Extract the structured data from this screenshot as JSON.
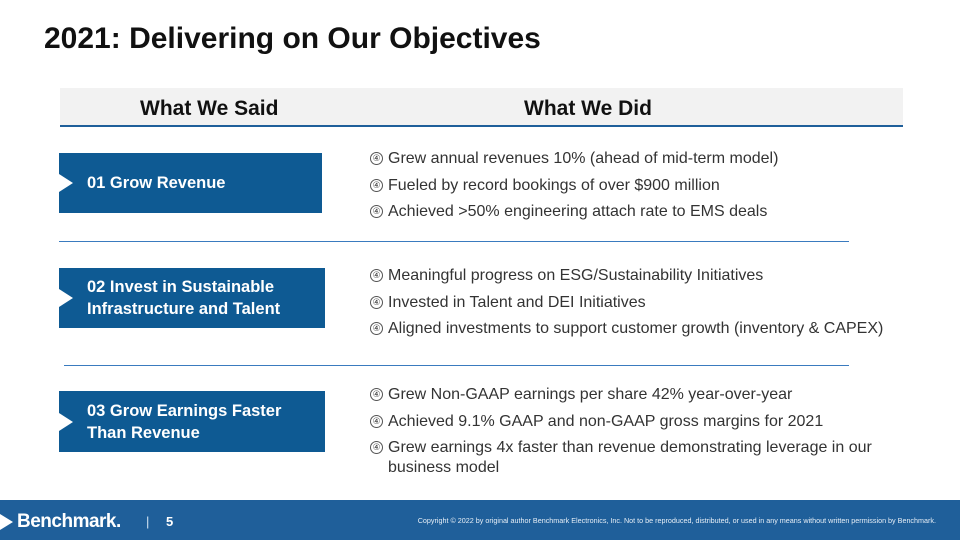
{
  "slide": {
    "title": "2021: Delivering on Our Objectives"
  },
  "table_header": {
    "said_label": "What We Said",
    "did_label": "What We Did"
  },
  "objectives": [
    {
      "label": "01 Grow Revenue",
      "bullets": [
        "Grew annual revenues 10% (ahead of mid-term model)",
        "Fueled by record bookings of over $900 million",
        "Achieved >50% engineering attach rate to EMS deals"
      ]
    },
    {
      "label": "02 Invest in Sustainable Infrastructure and Talent",
      "bullets": [
        "Meaningful progress on ESG/Sustainability Initiatives",
        "Invested in Talent and DEI Initiatives",
        "Aligned investments to support customer growth (inventory & CAPEX)"
      ]
    },
    {
      "label": "03 Grow Earnings Faster Than Revenue",
      "bullets": [
        "Grew Non-GAAP earnings per share 42% year-over-year",
        "Achieved 9.1% GAAP and non-GAAP gross margins for 2021",
        "Grew earnings 4x faster than revenue demonstrating leverage in our business model"
      ]
    }
  ],
  "bullet_glyph": "④",
  "footer": {
    "logo_text": "Benchmark.",
    "separator": "|",
    "page_number": "5",
    "copyright": "Copyright © 2022 by original author Benchmark Electronics, Inc. Not to be reproduced, distributed, or used in any means without written permission by Benchmark."
  },
  "colors": {
    "brand_blue": "#0e5a93",
    "footer_blue": "#1f5f9a",
    "header_band": "#f2f2f2"
  }
}
